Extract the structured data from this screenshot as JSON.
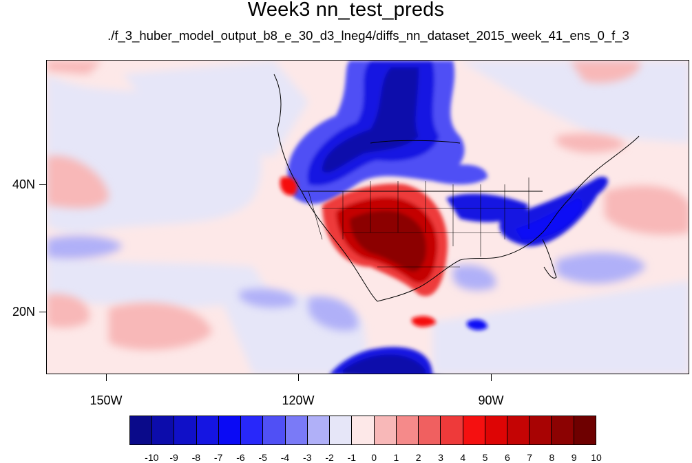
{
  "title": "Week3 nn_test_preds",
  "subtitle": "./f_3_huber_model_output_b8_e_30_d3_lneg4/diffs_nn_dataset_2015_week_41_ens_0_f_3",
  "lat_labels": [
    "40N",
    "20N"
  ],
  "lon_labels": [
    "150W",
    "120W",
    "90W"
  ],
  "colorbar": {
    "labels": [
      "-10",
      "-9",
      "-8",
      "-7",
      "-6",
      "-5",
      "-4",
      "-3",
      "-2",
      "-1",
      "0",
      "1",
      "2",
      "3",
      "4",
      "5",
      "6",
      "7",
      "8",
      "9",
      "10"
    ],
    "colors": [
      "#0a0a8a",
      "#0c0cab",
      "#1010c8",
      "#1515e2",
      "#0a0af5",
      "#2828fa",
      "#5050f5",
      "#7a7af7",
      "#b0b0f8",
      "#e6e6f8",
      "#fde8e8",
      "#f8b8b8",
      "#f58a8a",
      "#f06060",
      "#ee3a3a",
      "#f51010",
      "#de0505",
      "#c40404",
      "#a80303",
      "#8c0202",
      "#6e0000"
    ]
  },
  "chart_data": {
    "type": "heatmap",
    "title": "Week3 nn_test_preds",
    "subtitle": "./f_3_huber_model_output_b8_e_30_d3_lneg4/diffs_nn_dataset_2015_week_41_ens_0_f_3",
    "projection": "lat-lon",
    "lat_ticks": [
      "40N",
      "20N"
    ],
    "lon_ticks": [
      "150W",
      "120W",
      "90W"
    ],
    "color_levels": [
      -10,
      -9,
      -8,
      -7,
      -6,
      -5,
      -4,
      -3,
      -2,
      -1,
      0,
      1,
      2,
      3,
      4,
      5,
      6,
      7,
      8,
      9,
      10
    ],
    "colormap": "blue-white-red"
  }
}
